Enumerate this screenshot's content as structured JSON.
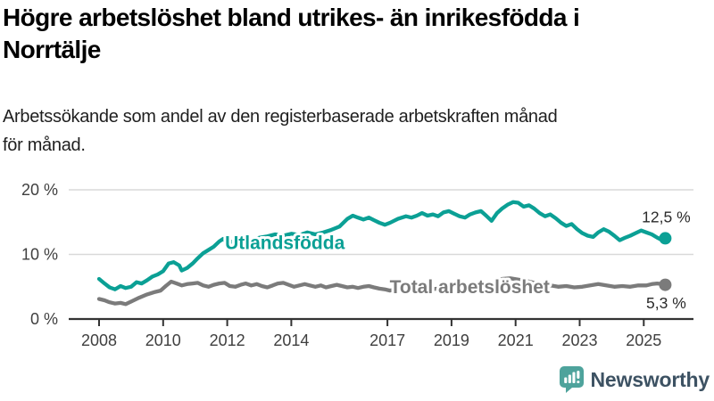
{
  "header": {
    "title_lines": [
      "Högre arbetslöshet bland utrikes- än inrikesfödda i",
      "Norrtälje"
    ],
    "subtitle_lines": [
      "Arbetssökande som andel av den registerbaserade arbetskraften månad",
      "för månad."
    ]
  },
  "chart_data": {
    "type": "line",
    "title": "Högre arbetslöshet bland utrikes- än inrikesfödda i Norrtälje",
    "subtitle": "Arbetssökande som andel av den registerbaserade arbetskraften månad för månad.",
    "unit": "%",
    "grid": true,
    "legend_position": "inline-labels-on-lines",
    "x_axis": {
      "range": [
        2008,
        2025.67
      ],
      "ticks": [
        2008,
        2010,
        2012,
        2014,
        2017,
        2019,
        2021,
        2023,
        2025
      ]
    },
    "y_axis": {
      "range": [
        0,
        20
      ],
      "ticks": [
        {
          "value": 0,
          "label": "0 %"
        },
        {
          "value": 10,
          "label": "10 %"
        },
        {
          "value": 20,
          "label": "20 %"
        }
      ]
    },
    "series": [
      {
        "name": "Total arbetslöshet",
        "color": "#7b7b7b",
        "end_value": 5.3,
        "end_label": "5,3 %",
        "end_label_side": "below",
        "label_anchor": {
          "x": 2017.07,
          "v": 4.0
        },
        "points": [
          [
            2008.0,
            3.1
          ],
          [
            2008.17,
            2.9
          ],
          [
            2008.33,
            2.6
          ],
          [
            2008.5,
            2.4
          ],
          [
            2008.67,
            2.5
          ],
          [
            2008.83,
            2.3
          ],
          [
            2009.0,
            2.7
          ],
          [
            2009.25,
            3.3
          ],
          [
            2009.5,
            3.8
          ],
          [
            2009.75,
            4.2
          ],
          [
            2009.92,
            4.4
          ],
          [
            2010.08,
            5.1
          ],
          [
            2010.25,
            5.8
          ],
          [
            2010.42,
            5.5
          ],
          [
            2010.58,
            5.2
          ],
          [
            2010.75,
            5.4
          ],
          [
            2010.92,
            5.5
          ],
          [
            2011.08,
            5.6
          ],
          [
            2011.25,
            5.2
          ],
          [
            2011.42,
            5.0
          ],
          [
            2011.58,
            5.3
          ],
          [
            2011.75,
            5.5
          ],
          [
            2011.92,
            5.6
          ],
          [
            2012.08,
            5.1
          ],
          [
            2012.25,
            5.0
          ],
          [
            2012.42,
            5.3
          ],
          [
            2012.58,
            5.5
          ],
          [
            2012.75,
            5.2
          ],
          [
            2012.92,
            5.4
          ],
          [
            2013.08,
            5.1
          ],
          [
            2013.25,
            4.9
          ],
          [
            2013.42,
            5.2
          ],
          [
            2013.58,
            5.5
          ],
          [
            2013.75,
            5.6
          ],
          [
            2013.92,
            5.3
          ],
          [
            2014.08,
            5.0
          ],
          [
            2014.25,
            5.2
          ],
          [
            2014.42,
            5.4
          ],
          [
            2014.58,
            5.2
          ],
          [
            2014.75,
            5.0
          ],
          [
            2014.92,
            5.2
          ],
          [
            2015.08,
            4.9
          ],
          [
            2015.25,
            5.1
          ],
          [
            2015.42,
            5.3
          ],
          [
            2015.58,
            5.1
          ],
          [
            2015.75,
            4.9
          ],
          [
            2015.92,
            5.0
          ],
          [
            2016.08,
            4.8
          ],
          [
            2016.25,
            5.0
          ],
          [
            2016.42,
            5.1
          ],
          [
            2016.58,
            4.9
          ],
          [
            2016.75,
            4.7
          ],
          [
            2016.92,
            4.6
          ],
          [
            2017.08,
            4.4
          ],
          [
            2017.33,
            4.7
          ],
          [
            2017.58,
            4.8
          ],
          [
            2017.83,
            4.5
          ],
          [
            2018.08,
            4.4
          ],
          [
            2018.33,
            4.6
          ],
          [
            2018.58,
            4.7
          ],
          [
            2018.83,
            4.5
          ],
          [
            2019.08,
            4.4
          ],
          [
            2019.33,
            4.6
          ],
          [
            2019.58,
            4.7
          ],
          [
            2019.83,
            4.9
          ],
          [
            2020.08,
            5.0
          ],
          [
            2020.33,
            5.6
          ],
          [
            2020.58,
            6.2
          ],
          [
            2020.83,
            6.3
          ],
          [
            2021.08,
            6.1
          ],
          [
            2021.33,
            5.9
          ],
          [
            2021.58,
            5.6
          ],
          [
            2021.83,
            5.4
          ],
          [
            2022.08,
            5.2
          ],
          [
            2022.33,
            5.0
          ],
          [
            2022.58,
            5.1
          ],
          [
            2022.83,
            4.9
          ],
          [
            2023.08,
            5.0
          ],
          [
            2023.33,
            5.2
          ],
          [
            2023.58,
            5.4
          ],
          [
            2023.83,
            5.2
          ],
          [
            2024.08,
            5.0
          ],
          [
            2024.33,
            5.1
          ],
          [
            2024.58,
            5.0
          ],
          [
            2024.83,
            5.2
          ],
          [
            2025.08,
            5.2
          ],
          [
            2025.25,
            5.4
          ],
          [
            2025.42,
            5.5
          ],
          [
            2025.58,
            5.4
          ],
          [
            2025.67,
            5.3
          ]
        ]
      },
      {
        "name": "Utlandsfödda",
        "color": "#0ba095",
        "end_value": 12.5,
        "end_label": "12,5 %",
        "end_label_side": "above",
        "label_anchor": {
          "x": 2011.93,
          "v": 10.8
        },
        "points": [
          [
            2008.0,
            6.2
          ],
          [
            2008.17,
            5.5
          ],
          [
            2008.33,
            4.9
          ],
          [
            2008.5,
            4.6
          ],
          [
            2008.67,
            5.1
          ],
          [
            2008.83,
            4.8
          ],
          [
            2009.0,
            5.0
          ],
          [
            2009.17,
            5.7
          ],
          [
            2009.33,
            5.5
          ],
          [
            2009.5,
            6.0
          ],
          [
            2009.67,
            6.6
          ],
          [
            2009.83,
            6.9
          ],
          [
            2010.0,
            7.4
          ],
          [
            2010.17,
            8.6
          ],
          [
            2010.33,
            8.8
          ],
          [
            2010.5,
            8.3
          ],
          [
            2010.58,
            7.5
          ],
          [
            2010.75,
            7.9
          ],
          [
            2010.92,
            8.6
          ],
          [
            2011.08,
            9.4
          ],
          [
            2011.25,
            10.2
          ],
          [
            2011.42,
            10.7
          ],
          [
            2011.58,
            11.2
          ],
          [
            2011.75,
            12.0
          ],
          [
            2011.87,
            12.4
          ],
          [
            2012.0,
            11.8
          ],
          [
            2012.25,
            12.1
          ],
          [
            2012.5,
            12.4
          ],
          [
            2012.75,
            12.1
          ],
          [
            2013.0,
            12.6
          ],
          [
            2013.25,
            12.8
          ],
          [
            2013.5,
            13.1
          ],
          [
            2013.75,
            12.9
          ],
          [
            2014.0,
            13.2
          ],
          [
            2014.25,
            13.0
          ],
          [
            2014.5,
            13.4
          ],
          [
            2014.75,
            13.1
          ],
          [
            2015.0,
            13.4
          ],
          [
            2015.25,
            13.8
          ],
          [
            2015.5,
            14.3
          ],
          [
            2015.75,
            15.5
          ],
          [
            2015.92,
            16.0
          ],
          [
            2016.08,
            15.7
          ],
          [
            2016.25,
            15.4
          ],
          [
            2016.42,
            15.7
          ],
          [
            2016.58,
            15.3
          ],
          [
            2016.75,
            14.9
          ],
          [
            2016.92,
            14.6
          ],
          [
            2017.08,
            14.9
          ],
          [
            2017.33,
            15.5
          ],
          [
            2017.58,
            15.9
          ],
          [
            2017.75,
            15.7
          ],
          [
            2017.92,
            16.0
          ],
          [
            2018.08,
            16.4
          ],
          [
            2018.25,
            16.0
          ],
          [
            2018.42,
            16.2
          ],
          [
            2018.58,
            15.9
          ],
          [
            2018.75,
            16.5
          ],
          [
            2018.92,
            16.7
          ],
          [
            2019.08,
            16.3
          ],
          [
            2019.25,
            15.9
          ],
          [
            2019.42,
            15.7
          ],
          [
            2019.58,
            16.2
          ],
          [
            2019.75,
            16.5
          ],
          [
            2019.92,
            16.7
          ],
          [
            2020.08,
            16.0
          ],
          [
            2020.25,
            15.2
          ],
          [
            2020.42,
            16.4
          ],
          [
            2020.58,
            17.1
          ],
          [
            2020.75,
            17.7
          ],
          [
            2020.92,
            18.1
          ],
          [
            2021.08,
            18.0
          ],
          [
            2021.25,
            17.4
          ],
          [
            2021.42,
            17.6
          ],
          [
            2021.58,
            17.1
          ],
          [
            2021.75,
            16.4
          ],
          [
            2021.92,
            15.9
          ],
          [
            2022.08,
            16.2
          ],
          [
            2022.25,
            15.6
          ],
          [
            2022.42,
            14.9
          ],
          [
            2022.58,
            14.4
          ],
          [
            2022.75,
            14.7
          ],
          [
            2022.92,
            13.9
          ],
          [
            2023.08,
            13.3
          ],
          [
            2023.25,
            12.9
          ],
          [
            2023.42,
            12.7
          ],
          [
            2023.58,
            13.4
          ],
          [
            2023.75,
            13.9
          ],
          [
            2023.92,
            13.5
          ],
          [
            2024.08,
            12.9
          ],
          [
            2024.25,
            12.2
          ],
          [
            2024.42,
            12.6
          ],
          [
            2024.58,
            12.9
          ],
          [
            2024.75,
            13.3
          ],
          [
            2024.92,
            13.7
          ],
          [
            2025.08,
            13.4
          ],
          [
            2025.25,
            13.1
          ],
          [
            2025.42,
            12.6
          ],
          [
            2025.58,
            12.2
          ],
          [
            2025.67,
            12.5
          ]
        ]
      }
    ]
  },
  "footer": {
    "brand": "Newsworthy"
  },
  "colors": {
    "accent_teal": "#0ba095",
    "line_gray": "#7b7b7b",
    "grid": "#d9d9d9",
    "axis": "#333333",
    "tick_text": "#3f3f3f",
    "value_text": "#2b2b2b",
    "brand_bubble": "#4ea39c",
    "brand_text": "#3d5263"
  }
}
